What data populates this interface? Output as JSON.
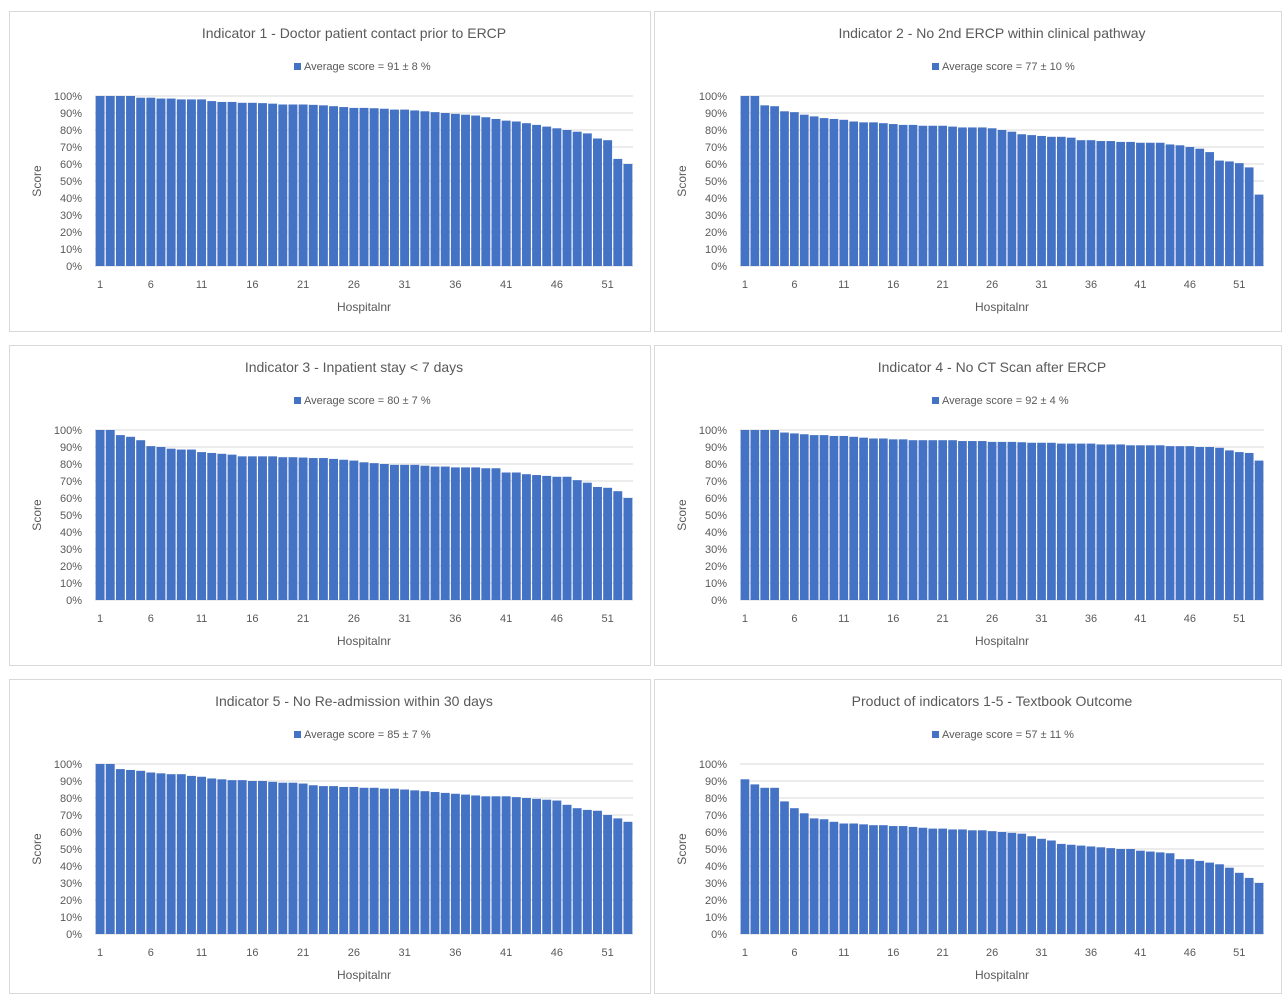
{
  "colors": {
    "bar": "#4472c4",
    "grid": "#d9d9d9",
    "text": "#595959"
  },
  "chart_data": [
    {
      "type": "bar",
      "title": "Indicator 1 - Doctor patient contact prior to ERCP",
      "legend": "Average score = 91 ± 8 %",
      "legend_position": "top",
      "xlabel": "Hospitalnr",
      "ylabel": "Score",
      "ylim": [
        0,
        100
      ],
      "yticks": [
        "0%",
        "10%",
        "20%",
        "30%",
        "40%",
        "50%",
        "60%",
        "70%",
        "80%",
        "90%",
        "100%"
      ],
      "xtick_labels": [
        "1",
        "6",
        "11",
        "16",
        "21",
        "26",
        "31",
        "36",
        "41",
        "46",
        "51"
      ],
      "grid": true,
      "categories": [
        1,
        2,
        3,
        4,
        5,
        6,
        7,
        8,
        9,
        10,
        11,
        12,
        13,
        14,
        15,
        16,
        17,
        18,
        19,
        20,
        21,
        22,
        23,
        24,
        25,
        26,
        27,
        28,
        29,
        30,
        31,
        32,
        33,
        34,
        35,
        36,
        37,
        38,
        39,
        40,
        41,
        42,
        43,
        44,
        45,
        46,
        47,
        48,
        49,
        50,
        51,
        52,
        53
      ],
      "values": [
        100,
        100,
        100,
        100,
        99,
        99,
        98.5,
        98.5,
        98,
        98,
        98,
        97,
        96.5,
        96.5,
        96,
        96,
        95.8,
        95.5,
        95,
        95,
        95,
        94.8,
        94.5,
        94,
        93.5,
        93,
        93,
        92.8,
        92.5,
        92,
        92,
        91.5,
        91,
        90.5,
        90,
        89.5,
        89,
        88.5,
        87.5,
        86.5,
        85.5,
        85,
        84,
        83,
        82,
        81,
        80,
        79,
        78,
        75,
        74,
        63,
        60
      ]
    },
    {
      "type": "bar",
      "title": "Indicator 2 - No 2nd ERCP within clinical pathway",
      "legend": "Average score = 77 ± 10 %",
      "legend_position": "top",
      "xlabel": "Hospitalnr",
      "ylabel": "Score",
      "ylim": [
        0,
        100
      ],
      "yticks": [
        "0%",
        "10%",
        "20%",
        "30%",
        "40%",
        "50%",
        "60%",
        "70%",
        "80%",
        "90%",
        "100%"
      ],
      "xtick_labels": [
        "1",
        "6",
        "11",
        "16",
        "21",
        "26",
        "31",
        "36",
        "41",
        "46",
        "51"
      ],
      "grid": true,
      "categories": [
        1,
        2,
        3,
        4,
        5,
        6,
        7,
        8,
        9,
        10,
        11,
        12,
        13,
        14,
        15,
        16,
        17,
        18,
        19,
        20,
        21,
        22,
        23,
        24,
        25,
        26,
        27,
        28,
        29,
        30,
        31,
        32,
        33,
        34,
        35,
        36,
        37,
        38,
        39,
        40,
        41,
        42,
        43,
        44,
        45,
        46,
        47,
        48,
        49,
        50,
        51,
        52,
        53
      ],
      "values": [
        100,
        100,
        94.5,
        94,
        91,
        90.5,
        89,
        88,
        87,
        86.5,
        86,
        85,
        84.5,
        84.5,
        84,
        83.5,
        83,
        83,
        82.5,
        82.5,
        82.5,
        82,
        81.5,
        81.5,
        81.5,
        81,
        80,
        79,
        77.5,
        77,
        76.5,
        76,
        76,
        75.5,
        74,
        74,
        73.5,
        73.5,
        73,
        73,
        72.5,
        72.5,
        72.5,
        71.5,
        71,
        70,
        69,
        67,
        62,
        61.5,
        60.5,
        58,
        42
      ]
    },
    {
      "type": "bar",
      "title": "Indicator 3 - Inpatient stay < 7 days",
      "legend": "Average score = 80 ± 7 %",
      "legend_position": "top",
      "xlabel": "Hospitalnr",
      "ylabel": "Score",
      "ylim": [
        0,
        100
      ],
      "yticks": [
        "0%",
        "10%",
        "20%",
        "30%",
        "40%",
        "50%",
        "60%",
        "70%",
        "80%",
        "90%",
        "100%"
      ],
      "xtick_labels": [
        "1",
        "6",
        "11",
        "16",
        "21",
        "26",
        "31",
        "36",
        "41",
        "46",
        "51"
      ],
      "grid": true,
      "categories": [
        1,
        2,
        3,
        4,
        5,
        6,
        7,
        8,
        9,
        10,
        11,
        12,
        13,
        14,
        15,
        16,
        17,
        18,
        19,
        20,
        21,
        22,
        23,
        24,
        25,
        26,
        27,
        28,
        29,
        30,
        31,
        32,
        33,
        34,
        35,
        36,
        37,
        38,
        39,
        40,
        41,
        42,
        43,
        44,
        45,
        46,
        47,
        48,
        49,
        50,
        51,
        52,
        53
      ],
      "values": [
        100,
        100,
        97,
        96,
        94,
        90.5,
        90,
        89,
        88.5,
        88.5,
        87,
        86.5,
        86,
        85.5,
        84.5,
        84.5,
        84.5,
        84.5,
        84,
        84,
        83.8,
        83.5,
        83.5,
        83,
        82.5,
        82,
        81,
        80.5,
        80,
        79.5,
        79.5,
        79.5,
        79,
        78.5,
        78.5,
        78,
        78,
        78,
        77.5,
        77.5,
        75,
        75,
        74,
        73.5,
        73,
        72.5,
        72.5,
        70.5,
        69,
        66.5,
        66,
        64,
        60
      ]
    },
    {
      "type": "bar",
      "title": "Indicator 4 - No CT Scan after ERCP",
      "legend": "Average score = 92 ± 4 %",
      "legend_position": "top",
      "xlabel": "Hospitalnr",
      "ylabel": "Score",
      "ylim": [
        0,
        100
      ],
      "yticks": [
        "0%",
        "10%",
        "20%",
        "30%",
        "40%",
        "50%",
        "60%",
        "70%",
        "80%",
        "90%",
        "100%"
      ],
      "xtick_labels": [
        "1",
        "6",
        "11",
        "16",
        "21",
        "26",
        "31",
        "36",
        "41",
        "46",
        "51"
      ],
      "grid": true,
      "categories": [
        1,
        2,
        3,
        4,
        5,
        6,
        7,
        8,
        9,
        10,
        11,
        12,
        13,
        14,
        15,
        16,
        17,
        18,
        19,
        20,
        21,
        22,
        23,
        24,
        25,
        26,
        27,
        28,
        29,
        30,
        31,
        32,
        33,
        34,
        35,
        36,
        37,
        38,
        39,
        40,
        41,
        42,
        43,
        44,
        45,
        46,
        47,
        48,
        49,
        50,
        51,
        52,
        53
      ],
      "values": [
        100,
        100,
        100,
        100,
        98.5,
        98,
        97.5,
        97,
        97,
        96.5,
        96.5,
        96,
        95.5,
        95,
        95,
        94.5,
        94.5,
        94,
        94,
        94,
        94,
        94,
        93.5,
        93.5,
        93.5,
        93,
        93,
        93,
        92.8,
        92.5,
        92.5,
        92.5,
        92,
        92,
        92,
        92,
        91.5,
        91.5,
        91.5,
        91,
        91,
        91,
        91,
        90.5,
        90.5,
        90.5,
        90,
        90,
        89.5,
        88,
        87,
        86.5,
        82
      ]
    },
    {
      "type": "bar",
      "title": "Indicator 5 - No Re-admission within 30 days",
      "legend": "Average score = 85 ± 7 %",
      "legend_position": "top",
      "xlabel": "Hospitalnr",
      "ylabel": "Score",
      "ylim": [
        0,
        100
      ],
      "yticks": [
        "0%",
        "10%",
        "20%",
        "30%",
        "40%",
        "50%",
        "60%",
        "70%",
        "80%",
        "90%",
        "100%"
      ],
      "xtick_labels": [
        "1",
        "6",
        "11",
        "16",
        "21",
        "26",
        "31",
        "36",
        "41",
        "46",
        "51"
      ],
      "grid": true,
      "categories": [
        1,
        2,
        3,
        4,
        5,
        6,
        7,
        8,
        9,
        10,
        11,
        12,
        13,
        14,
        15,
        16,
        17,
        18,
        19,
        20,
        21,
        22,
        23,
        24,
        25,
        26,
        27,
        28,
        29,
        30,
        31,
        32,
        33,
        34,
        35,
        36,
        37,
        38,
        39,
        40,
        41,
        42,
        43,
        44,
        45,
        46,
        47,
        48,
        49,
        50,
        51,
        52,
        53
      ],
      "values": [
        100,
        100,
        97,
        96.5,
        96,
        95,
        94.5,
        94,
        94,
        93,
        92.5,
        91.5,
        91,
        90.5,
        90.5,
        90,
        90,
        89.5,
        89,
        89,
        88.5,
        87.5,
        87,
        87,
        86.5,
        86.5,
        86,
        86,
        85.5,
        85.5,
        85,
        84.5,
        84,
        83.5,
        83,
        82.5,
        82,
        81.5,
        81,
        81,
        81,
        80.5,
        80,
        79.5,
        79,
        78.5,
        76,
        74,
        73,
        72.5,
        70,
        68,
        66
      ]
    },
    {
      "type": "bar",
      "title": "Product of indicators 1-5 - Textbook Outcome",
      "legend": "Average score = 57 ± 11 %",
      "legend_position": "top",
      "xlabel": "Hospitalnr",
      "ylabel": "Score",
      "ylim": [
        0,
        100
      ],
      "yticks": [
        "0%",
        "10%",
        "20%",
        "30%",
        "40%",
        "50%",
        "60%",
        "70%",
        "80%",
        "90%",
        "100%"
      ],
      "xtick_labels": [
        "1",
        "6",
        "11",
        "16",
        "21",
        "26",
        "31",
        "36",
        "41",
        "46",
        "51"
      ],
      "grid": true,
      "categories": [
        1,
        2,
        3,
        4,
        5,
        6,
        7,
        8,
        9,
        10,
        11,
        12,
        13,
        14,
        15,
        16,
        17,
        18,
        19,
        20,
        21,
        22,
        23,
        24,
        25,
        26,
        27,
        28,
        29,
        30,
        31,
        32,
        33,
        34,
        35,
        36,
        37,
        38,
        39,
        40,
        41,
        42,
        43,
        44,
        45,
        46,
        47,
        48,
        49,
        50,
        51,
        52,
        53
      ],
      "values": [
        91,
        88,
        86,
        86,
        78,
        74,
        71,
        68,
        67.5,
        66,
        65,
        65,
        64.5,
        64,
        64,
        63.5,
        63.5,
        63,
        62.5,
        62,
        62,
        61.5,
        61.5,
        61,
        61,
        60.5,
        60,
        59.5,
        59,
        57.5,
        56,
        55,
        53,
        52.5,
        52,
        51.5,
        51,
        50.5,
        50,
        50,
        49,
        48.5,
        48,
        47.5,
        44,
        44,
        43,
        42,
        41,
        39,
        36,
        33,
        30
      ]
    }
  ]
}
